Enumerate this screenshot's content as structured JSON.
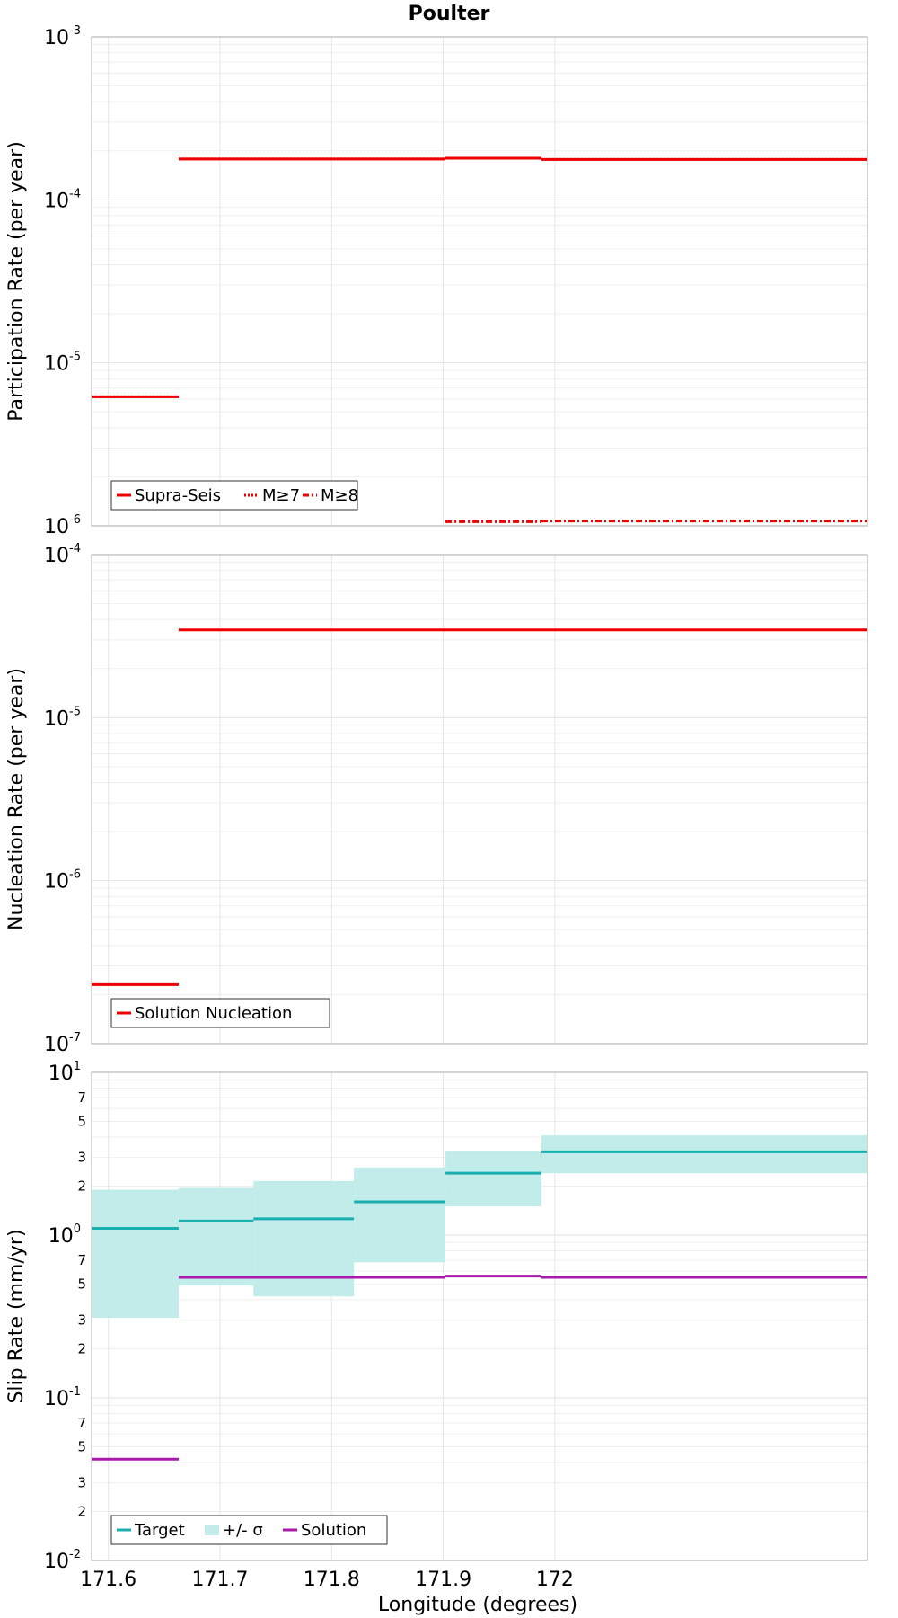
{
  "chart_data": {
    "type": "line",
    "title": "Poulter",
    "xlabel": "Longitude (degrees)",
    "xlim": [
      171.585,
      172.28
    ],
    "xticks": [
      "171.6",
      "171.7",
      "171.8",
      "171.9",
      "172"
    ],
    "xtick_values": [
      171.6,
      171.7,
      171.8,
      171.9,
      172.0
    ],
    "grid": true,
    "panels": [
      {
        "ylabel": "Participation Rate (per year)",
        "yscale": "log",
        "ylim": [
          1e-06,
          0.001
        ],
        "ytick_bases": [
          "10",
          "10",
          "10",
          "10"
        ],
        "ytick_exponents": [
          "-6",
          "-5",
          "-4",
          "-3"
        ],
        "legend_position": "bottom-left",
        "legend": [
          "Supra-Seis",
          "M≥7",
          "M≥8"
        ],
        "series": [
          {
            "name": "Supra-Seis",
            "style": "solid",
            "color": "#ee0000",
            "segments": [
              [
                171.585,
                171.663,
                6.2e-06
              ],
              [
                171.663,
                171.902,
                0.000178
              ],
              [
                171.902,
                171.988,
                0.00018
              ],
              [
                171.988,
                172.28,
                0.000177
              ]
            ]
          },
          {
            "name": "M≥7",
            "style": "dotted",
            "color": "#ee0000",
            "segments": [
              [
                171.585,
                171.663,
                6.2e-06
              ],
              [
                171.663,
                171.902,
                0.000178
              ],
              [
                171.902,
                171.988,
                0.00018
              ],
              [
                171.988,
                172.28,
                0.000177
              ]
            ]
          },
          {
            "name": "M≥8",
            "style": "dashdot",
            "color": "#ee0000",
            "segments": [
              [
                171.902,
                171.988,
                1.06e-06
              ],
              [
                171.988,
                172.28,
                1.07e-06
              ]
            ]
          }
        ]
      },
      {
        "ylabel": "Nucleation Rate (per year)",
        "yscale": "log",
        "ylim": [
          1e-07,
          0.0001
        ],
        "ytick_bases": [
          "10",
          "10",
          "10",
          "10"
        ],
        "ytick_exponents": [
          "-7",
          "-6",
          "-5",
          "-4"
        ],
        "legend_position": "bottom-left",
        "legend": [
          "Solution Nucleation"
        ],
        "series": [
          {
            "name": "Solution Nucleation",
            "style": "solid",
            "color": "#ee0000",
            "segments": [
              [
                171.585,
                171.663,
                2.3e-07
              ],
              [
                171.663,
                172.28,
                3.45e-05
              ]
            ]
          }
        ]
      },
      {
        "ylabel": "Slip Rate (mm/yr)",
        "yscale": "log",
        "ylim": [
          0.01,
          10
        ],
        "ytick_bases": [
          "10",
          "10",
          "10",
          "10"
        ],
        "ytick_exponents": [
          "-2",
          "-1",
          "0",
          "1"
        ],
        "minor_tick_labels": [
          "2",
          "3",
          "5",
          "7"
        ],
        "legend_position": "bottom-left",
        "legend": [
          "Target",
          "+/- σ",
          "Solution"
        ],
        "bands": [
          {
            "name": "+/- σ",
            "color": "#c2ecea",
            "segments": [
              [
                171.585,
                171.663,
                0.31,
                1.9
              ],
              [
                171.663,
                171.73,
                0.49,
                1.95
              ],
              [
                171.73,
                171.82,
                0.42,
                2.15
              ],
              [
                171.82,
                171.902,
                0.68,
                2.6
              ],
              [
                171.902,
                171.988,
                1.5,
                3.3
              ],
              [
                171.988,
                172.28,
                2.4,
                4.1
              ]
            ]
          }
        ],
        "series": [
          {
            "name": "Target",
            "style": "solid",
            "color": "#1aafaf",
            "segments": [
              [
                171.585,
                171.663,
                1.1
              ],
              [
                171.663,
                171.73,
                1.22
              ],
              [
                171.73,
                171.82,
                1.26
              ],
              [
                171.82,
                171.902,
                1.6
              ],
              [
                171.902,
                171.988,
                2.4
              ],
              [
                171.988,
                172.28,
                3.25
              ]
            ]
          },
          {
            "name": "Solution",
            "style": "solid",
            "color": "#aa1aaa",
            "segments": [
              [
                171.585,
                171.663,
                0.042
              ],
              [
                171.663,
                171.902,
                0.55
              ],
              [
                171.902,
                171.988,
                0.56
              ],
              [
                171.988,
                172.28,
                0.55
              ]
            ]
          }
        ]
      }
    ]
  }
}
